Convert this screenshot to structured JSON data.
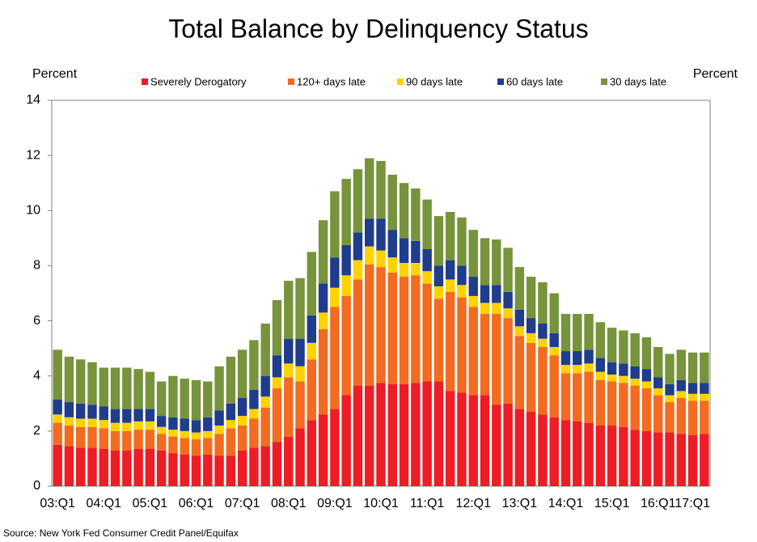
{
  "chart_data": {
    "type": "stacked_bar",
    "title": "Total Balance by Delinquency Status",
    "ylabel": "Percent",
    "ylabel_right": "Percent",
    "source": "Source: New York Fed Consumer Credit Panel/Equifax",
    "categories": [
      "03:Q1",
      null,
      null,
      null,
      "04:Q1",
      null,
      null,
      null,
      "05:Q1",
      null,
      null,
      null,
      "06:Q1",
      null,
      null,
      null,
      "07:Q1",
      null,
      null,
      null,
      "08:Q1",
      null,
      null,
      null,
      "09:Q1",
      null,
      null,
      null,
      "10:Q1",
      null,
      null,
      null,
      "11:Q1",
      null,
      null,
      null,
      "12:Q1",
      null,
      null,
      null,
      "13:Q1",
      null,
      null,
      null,
      "14:Q1",
      null,
      null,
      null,
      "15:Q1",
      null,
      null,
      null,
      "16:Q1",
      null,
      null,
      null,
      "17:Q1"
    ],
    "series": [
      {
        "name": "Severely Derogatory",
        "color": "#ee1c25",
        "values": [
          1.5,
          1.45,
          1.4,
          1.4,
          1.35,
          1.3,
          1.3,
          1.35,
          1.35,
          1.3,
          1.2,
          1.15,
          1.1,
          1.15,
          1.1,
          1.1,
          1.3,
          1.4,
          1.45,
          1.6,
          1.8,
          2.1,
          2.4,
          2.6,
          2.8,
          3.3,
          3.65,
          3.65,
          3.75,
          3.7,
          3.7,
          3.75,
          3.8,
          3.8,
          3.45,
          3.4,
          3.3,
          3.3,
          2.95,
          3.0,
          2.8,
          2.7,
          2.6,
          2.5,
          2.4,
          2.35,
          2.3,
          2.2,
          2.2,
          2.15,
          2.05,
          2.0,
          1.95,
          1.95,
          1.9,
          1.85,
          1.9
        ]
      },
      {
        "name": "120+ days late",
        "color": "#f26b21",
        "values": [
          0.8,
          0.75,
          0.75,
          0.75,
          0.75,
          0.7,
          0.7,
          0.7,
          0.7,
          0.6,
          0.6,
          0.6,
          0.6,
          0.6,
          0.8,
          1.0,
          0.9,
          1.05,
          1.4,
          1.95,
          2.15,
          1.7,
          2.2,
          3.1,
          3.7,
          3.6,
          3.85,
          4.4,
          4.2,
          4.05,
          3.9,
          3.9,
          3.55,
          3.0,
          3.6,
          3.45,
          3.2,
          2.95,
          3.3,
          3.1,
          2.65,
          2.5,
          2.45,
          2.25,
          1.7,
          1.75,
          1.85,
          1.65,
          1.6,
          1.6,
          1.6,
          1.55,
          1.35,
          1.1,
          1.3,
          1.25,
          1.2
        ]
      },
      {
        "name": "90 days late",
        "color": "#ffd200",
        "values": [
          0.3,
          0.3,
          0.3,
          0.3,
          0.3,
          0.3,
          0.3,
          0.3,
          0.3,
          0.25,
          0.25,
          0.25,
          0.25,
          0.25,
          0.3,
          0.3,
          0.35,
          0.35,
          0.4,
          0.4,
          0.5,
          0.55,
          0.6,
          0.6,
          0.7,
          0.75,
          0.7,
          0.65,
          0.6,
          0.55,
          0.5,
          0.45,
          0.45,
          0.45,
          0.45,
          0.45,
          0.4,
          0.4,
          0.4,
          0.35,
          0.35,
          0.35,
          0.3,
          0.3,
          0.3,
          0.3,
          0.3,
          0.3,
          0.25,
          0.25,
          0.25,
          0.25,
          0.25,
          0.25,
          0.25,
          0.25,
          0.25
        ]
      },
      {
        "name": "60 days late",
        "color": "#1f3d8c",
        "values": [
          0.55,
          0.55,
          0.55,
          0.5,
          0.5,
          0.5,
          0.5,
          0.45,
          0.45,
          0.4,
          0.45,
          0.45,
          0.45,
          0.5,
          0.55,
          0.6,
          0.65,
          0.7,
          0.75,
          0.8,
          0.9,
          1.0,
          1.0,
          1.05,
          1.1,
          1.1,
          1.0,
          1.0,
          1.15,
          1.0,
          0.9,
          0.8,
          0.8,
          0.75,
          0.7,
          0.7,
          0.7,
          0.65,
          0.65,
          0.6,
          0.6,
          0.55,
          0.55,
          0.5,
          0.5,
          0.5,
          0.5,
          0.5,
          0.45,
          0.45,
          0.45,
          0.45,
          0.4,
          0.4,
          0.4,
          0.4,
          0.4
        ]
      },
      {
        "name": "30 days late",
        "color": "#77933c",
        "values": [
          1.8,
          1.65,
          1.6,
          1.55,
          1.4,
          1.5,
          1.5,
          1.45,
          1.35,
          1.25,
          1.5,
          1.45,
          1.45,
          1.3,
          1.6,
          1.7,
          1.75,
          1.8,
          1.9,
          2.0,
          2.1,
          2.2,
          2.3,
          2.3,
          2.4,
          2.4,
          2.3,
          2.2,
          2.1,
          2.0,
          2.0,
          1.9,
          1.8,
          1.8,
          1.75,
          1.75,
          1.7,
          1.7,
          1.65,
          1.6,
          1.55,
          1.5,
          1.5,
          1.45,
          1.35,
          1.35,
          1.3,
          1.3,
          1.25,
          1.2,
          1.2,
          1.15,
          1.1,
          1.1,
          1.1,
          1.1,
          1.1
        ]
      }
    ],
    "ylim": [
      0,
      14
    ],
    "yticks": [
      0,
      2,
      4,
      6,
      8,
      10,
      12,
      14
    ],
    "grid": false,
    "legend": "top"
  }
}
